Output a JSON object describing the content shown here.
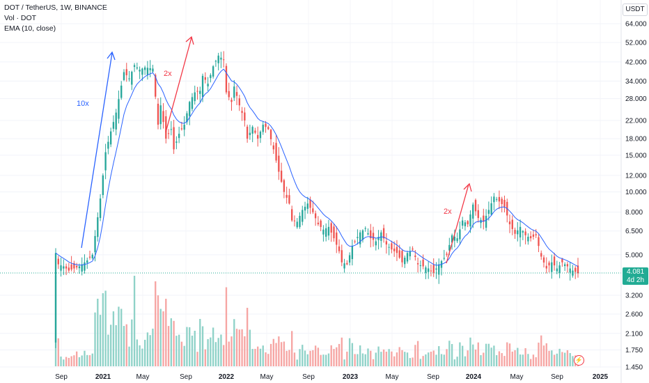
{
  "header": {
    "symbol_line": "DOT / TetherUS, 1W, BINANCE",
    "volume_line": "Vol · DOT",
    "ema_line": "EMA (10, close)"
  },
  "price_scale": {
    "currency": "USDT",
    "last_price": "4.081",
    "countdown": "4d 2h"
  },
  "colors": {
    "up": "#26a69a",
    "down": "#ef5350",
    "ema": "#2962ff",
    "up_volume": "#8fd2c8",
    "down_volume": "#f6a5a3",
    "annotation_blue": "#2962ff",
    "annotation_red": "#f23645"
  },
  "chart_data": {
    "type": "candlestick",
    "title": "DOT / TetherUS, 1W, BINANCE",
    "scale": "log",
    "y_ticks": [
      64.0,
      52.0,
      42.0,
      34.0,
      28.0,
      22.0,
      18.0,
      15.0,
      12.0,
      10.0,
      8.0,
      6.5,
      5.0,
      4.081,
      3.2,
      2.6,
      2.1,
      1.75,
      1.45
    ],
    "y_tick_labels": [
      "64.000",
      "52.000",
      "42.000",
      "34.000",
      "28.000",
      "22.000",
      "18.000",
      "15.000",
      "12.000",
      "10.000",
      "8.000",
      "6.500",
      "5.000",
      "4.081",
      "3.200",
      "2.600",
      "2.100",
      "1.750",
      "1.450"
    ],
    "x_tick_labels": [
      "Sep",
      "2021",
      "May",
      "Sep",
      "2022",
      "May",
      "Sep",
      "2023",
      "May",
      "Sep",
      "2024",
      "May",
      "Sep",
      "2025"
    ],
    "series": [
      {
        "name": "EMA (10, close)",
        "role": "moving-average"
      },
      {
        "name": "Vol · DOT",
        "role": "volume"
      }
    ],
    "annotations": [
      {
        "text": "10x",
        "color": "blue"
      },
      {
        "text": "2x",
        "color": "red"
      },
      {
        "text": "2x",
        "color": "red"
      }
    ],
    "close_waypoints": [
      [
        0,
        5.1
      ],
      [
        1,
        4.5
      ],
      [
        3,
        4.4
      ],
      [
        5,
        4.2
      ],
      [
        9,
        4.4
      ],
      [
        12,
        4.7
      ],
      [
        14,
        5.0
      ],
      [
        17,
        9.3
      ],
      [
        19,
        15.5
      ],
      [
        21,
        19.5
      ],
      [
        23,
        24.0
      ],
      [
        26,
        37.5
      ],
      [
        28,
        35.0
      ],
      [
        30,
        40.5
      ],
      [
        32,
        38.5
      ],
      [
        34,
        39.5
      ],
      [
        37,
        39.0
      ],
      [
        39,
        21.0
      ],
      [
        40,
        26.0
      ],
      [
        42,
        18.0
      ],
      [
        44,
        20.0
      ],
      [
        45,
        16.0
      ],
      [
        47,
        19.0
      ],
      [
        49,
        21.0
      ],
      [
        51,
        27.0
      ],
      [
        53,
        30.0
      ],
      [
        55,
        30.5
      ],
      [
        56,
        36.0
      ],
      [
        58,
        33.0
      ],
      [
        60,
        40.0
      ],
      [
        62,
        45.0
      ],
      [
        64,
        43.0
      ],
      [
        65,
        30.0
      ],
      [
        67,
        27.0
      ],
      [
        68,
        32.0
      ],
      [
        70,
        26.0
      ],
      [
        72,
        22.0
      ],
      [
        73,
        18.0
      ],
      [
        75,
        20.5
      ],
      [
        77,
        18.0
      ],
      [
        79,
        21.0
      ],
      [
        81,
        20.0
      ],
      [
        83,
        16.0
      ],
      [
        85,
        12.5
      ],
      [
        87,
        10.0
      ],
      [
        89,
        8.8
      ],
      [
        90,
        7.3
      ],
      [
        92,
        7.2
      ],
      [
        94,
        8.2
      ],
      [
        96,
        8.8
      ],
      [
        98,
        8.0
      ],
      [
        100,
        7.0
      ],
      [
        102,
        6.6
      ],
      [
        104,
        6.8
      ],
      [
        106,
        6.0
      ],
      [
        108,
        5.2
      ],
      [
        109,
        4.6
      ],
      [
        111,
        4.5
      ],
      [
        113,
        5.5
      ],
      [
        116,
        6.4
      ],
      [
        118,
        6.7
      ],
      [
        120,
        6.0
      ],
      [
        122,
        5.8
      ],
      [
        124,
        6.4
      ],
      [
        126,
        5.6
      ],
      [
        128,
        5.3
      ],
      [
        130,
        5.1
      ],
      [
        132,
        4.6
      ],
      [
        134,
        5.1
      ],
      [
        136,
        5.3
      ],
      [
        138,
        4.5
      ],
      [
        140,
        4.4
      ],
      [
        142,
        4.3
      ],
      [
        144,
        4.1
      ],
      [
        146,
        4.5
      ],
      [
        149,
        5.0
      ],
      [
        151,
        6.2
      ],
      [
        153,
        6.0
      ],
      [
        155,
        7.3
      ],
      [
        157,
        7.0
      ],
      [
        159,
        8.7
      ],
      [
        161,
        7.5
      ],
      [
        163,
        7.2
      ],
      [
        165,
        8.2
      ],
      [
        167,
        9.5
      ],
      [
        169,
        9.0
      ],
      [
        171,
        8.5
      ],
      [
        173,
        7.0
      ],
      [
        175,
        6.3
      ],
      [
        177,
        6.8
      ],
      [
        179,
        6.2
      ],
      [
        181,
        6.0
      ],
      [
        183,
        6.2
      ],
      [
        185,
        4.9
      ],
      [
        187,
        4.3
      ],
      [
        189,
        4.6
      ],
      [
        191,
        4.3
      ],
      [
        193,
        4.6
      ],
      [
        195,
        4.4
      ],
      [
        197,
        4.2
      ],
      [
        199,
        4.081
      ]
    ]
  }
}
